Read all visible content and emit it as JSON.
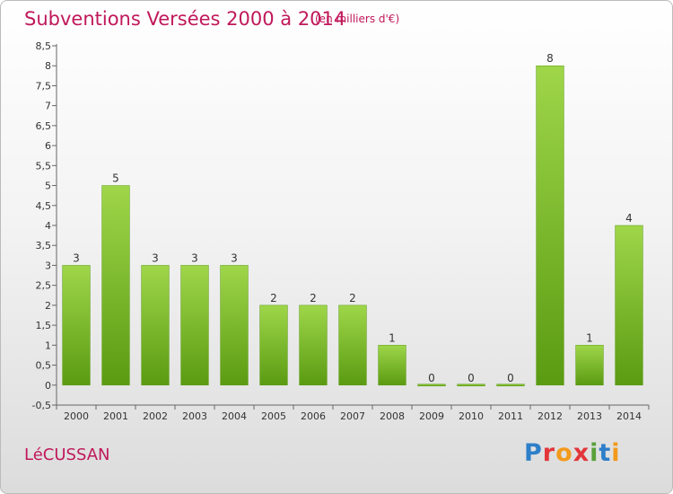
{
  "header": {
    "title": "Subventions Versées 2000 à 2014",
    "unit_note": "(en milliers d'€)"
  },
  "footer": {
    "place_name": "LéCUSSAN",
    "logo_text": "Proxiti"
  },
  "colors": {
    "title": "#c0185a",
    "bar_light": "#9fd64a",
    "bar_dark": "#5a9b12",
    "axis": "#666666"
  },
  "chart_data": {
    "type": "bar",
    "title": "Subventions Versées 2000 à 2014",
    "subtitle": "(en milliers d'€)",
    "categories": [
      "2000",
      "2001",
      "2002",
      "2003",
      "2004",
      "2005",
      "2006",
      "2007",
      "2008",
      "2009",
      "2010",
      "2011",
      "2012",
      "2013",
      "2014"
    ],
    "values": [
      3,
      5,
      3,
      3,
      3,
      2,
      2,
      2,
      1,
      0,
      0,
      0,
      8,
      1,
      4
    ],
    "ylim": [
      -0.5,
      8.5
    ],
    "yticks": [
      "-0,5",
      "0",
      "0,5",
      "1",
      "1,5",
      "2",
      "2,5",
      "3",
      "3,5",
      "4",
      "4,5",
      "5",
      "5,5",
      "6",
      "6,5",
      "7",
      "7,5",
      "8",
      "8,5"
    ],
    "data_labels": [
      "3",
      "5",
      "3",
      "3",
      "3",
      "2",
      "2",
      "2",
      "1",
      "0",
      "0",
      "0",
      "8",
      "1",
      "4"
    ],
    "grid": false,
    "legend": "none"
  }
}
